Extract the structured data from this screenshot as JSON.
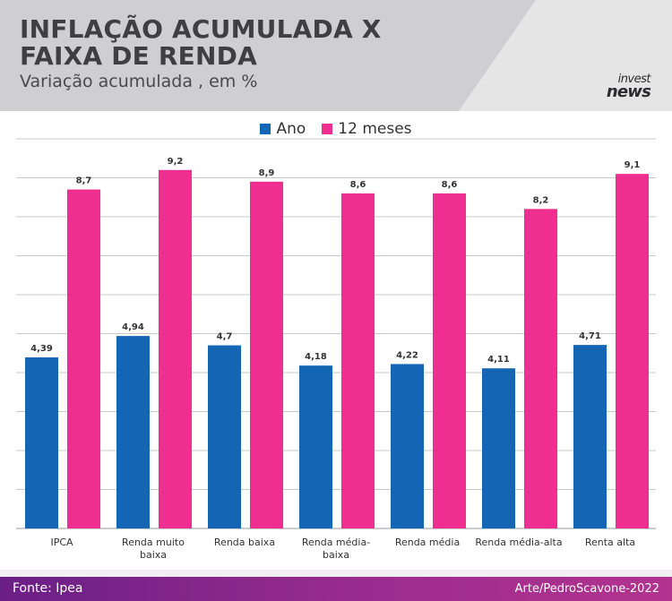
{
  "header": {
    "title_line1": "INFLAÇÃO ACUMULADA X",
    "title_line2": "FAIXA DE RENDA",
    "subtitle": "Variação acumulada , em %",
    "logo_top": "invest",
    "logo_bottom": "news"
  },
  "legend": [
    {
      "label": "Ano",
      "color": "#1565b5"
    },
    {
      "label": "12 meses",
      "color": "#ef2f8f"
    }
  ],
  "footer": {
    "source": "Fonte: Ipea",
    "credit": "Arte/PedroScavone-2022"
  },
  "colors": {
    "header_bg": "#e5e5e6",
    "series_ano": "#1565b5",
    "series_12m": "#ef2f8f",
    "footer_start": "#6a1f86",
    "footer_end": "#b3338f"
  },
  "chart_data": {
    "type": "bar",
    "categories": [
      "IPCA",
      "Renda muito baixa",
      "Renda baixa",
      "Renda média-baixa",
      "Renda média",
      "Renda média-alta",
      "Renta alta"
    ],
    "category_lines": [
      [
        "IPCA"
      ],
      [
        "Renda muito",
        "baixa"
      ],
      [
        "Renda baixa"
      ],
      [
        "Renda média-",
        "baixa"
      ],
      [
        "Renda média"
      ],
      [
        "Renda média-alta"
      ],
      [
        "Renta alta"
      ]
    ],
    "series": [
      {
        "name": "Ano",
        "values": [
          4.39,
          4.94,
          4.7,
          4.18,
          4.22,
          4.11,
          4.71
        ],
        "labels": [
          "4,39",
          "4,94",
          "4,7",
          "4,18",
          "4,22",
          "4,11",
          "4,71"
        ]
      },
      {
        "name": "12 meses",
        "values": [
          8.7,
          9.2,
          8.9,
          8.6,
          8.6,
          8.2,
          9.1
        ],
        "labels": [
          "8,7",
          "9,2",
          "8,9",
          "8,6",
          "8,6",
          "8,2",
          "9,1"
        ]
      }
    ],
    "ylim": [
      0,
      10
    ],
    "grid": true,
    "legend_position": "top-center",
    "y_tick_labels_visible": false
  }
}
